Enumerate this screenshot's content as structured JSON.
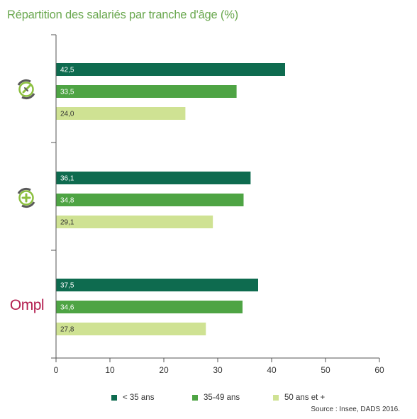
{
  "title": "Répartition des salariés par tranche d'âge (%)",
  "source": "Source : Insee, DADS 2016.",
  "colors": {
    "lt35": "#0e6b4f",
    "age35_49": "#4ea444",
    "age50plus": "#cfe293",
    "title": "#6aa84f"
  },
  "groups": [
    {
      "icon": "leaf-circle-icon"
    },
    {
      "icon": "plus-circle-icon"
    },
    {
      "icon": "ompl-logo",
      "logo_text": "Ompl"
    }
  ],
  "legend": [
    {
      "label": "< 35 ans",
      "color": "#0e6b4f"
    },
    {
      "label": "35-49 ans",
      "color": "#4ea444"
    },
    {
      "label": "50 ans et +",
      "color": "#cfe293"
    }
  ],
  "chart_data": {
    "type": "bar",
    "orientation": "horizontal",
    "title": "Répartition des salariés par tranche d'âge (%)",
    "xlim": [
      0,
      60
    ],
    "xticks": [
      0,
      10,
      20,
      30,
      40,
      50,
      60
    ],
    "grid": false,
    "legend_position": "bottom",
    "series": [
      {
        "name": "< 35 ans",
        "values": [
          42.5,
          36.1,
          37.5
        ],
        "labels": [
          "42,5",
          "36,1",
          "37,5"
        ]
      },
      {
        "name": "35-49 ans",
        "values": [
          33.5,
          34.8,
          34.6
        ],
        "labels": [
          "33,5",
          "34,8",
          "34,6"
        ]
      },
      {
        "name": "50 ans et +",
        "values": [
          24.0,
          29.1,
          27.8
        ],
        "labels": [
          "24,0",
          "29,1",
          "27,8"
        ]
      }
    ]
  }
}
